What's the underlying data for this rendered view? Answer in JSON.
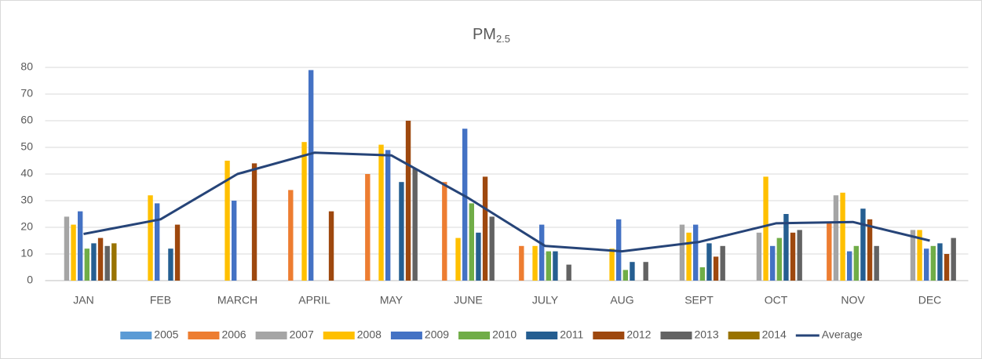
{
  "chart_data": {
    "type": "bar",
    "title": "PM",
    "title_subscript": "2.5",
    "categories": [
      "JAN",
      "FEB",
      "MARCH",
      "APRIL",
      "MAY",
      "JUNE",
      "JULY",
      "AUG",
      "SEPT",
      "OCT",
      "NOV",
      "DEC"
    ],
    "ylim": [
      0,
      80
    ],
    "yticks": [
      0,
      10,
      20,
      30,
      40,
      50,
      60,
      70,
      80
    ],
    "grid": true,
    "legend": "bottom",
    "series": [
      {
        "name": "2005",
        "color": "#5b9bd5",
        "values": [
          null,
          null,
          null,
          null,
          null,
          null,
          null,
          null,
          null,
          null,
          null,
          null
        ]
      },
      {
        "name": "2006",
        "color": "#ed7d31",
        "values": [
          null,
          null,
          null,
          34,
          40,
          37,
          13,
          null,
          null,
          null,
          22,
          null
        ]
      },
      {
        "name": "2007",
        "color": "#a5a5a5",
        "values": [
          24,
          null,
          null,
          null,
          null,
          null,
          null,
          null,
          21,
          18,
          32,
          19
        ]
      },
      {
        "name": "2008",
        "color": "#ffc000",
        "values": [
          21,
          32,
          45,
          52,
          51,
          16,
          13,
          12,
          18,
          39,
          33,
          19
        ]
      },
      {
        "name": "2009",
        "color": "#4472c4",
        "values": [
          26,
          29,
          30,
          79,
          49,
          57,
          21,
          23,
          21,
          13,
          11,
          12
        ]
      },
      {
        "name": "2010",
        "color": "#70ad47",
        "values": [
          12,
          null,
          null,
          null,
          null,
          29,
          11,
          4,
          5,
          16,
          13,
          13
        ]
      },
      {
        "name": "2011",
        "color": "#255e91",
        "values": [
          14,
          12,
          null,
          null,
          37,
          18,
          11,
          7,
          14,
          25,
          27,
          14
        ]
      },
      {
        "name": "2012",
        "color": "#9e480e",
        "values": [
          16,
          21,
          44,
          26,
          60,
          39,
          null,
          null,
          9,
          18,
          23,
          10
        ]
      },
      {
        "name": "2013",
        "color": "#636363",
        "values": [
          13,
          null,
          null,
          null,
          42,
          24,
          6,
          7,
          13,
          19,
          13,
          16
        ]
      },
      {
        "name": "2014",
        "color": "#997300",
        "values": [
          14,
          null,
          null,
          null,
          null,
          null,
          null,
          null,
          null,
          null,
          null,
          null
        ]
      },
      {
        "name": "Average",
        "type": "line",
        "color": "#264478",
        "values": [
          17.5,
          23,
          40,
          48,
          47,
          31,
          13,
          11,
          14.5,
          21.5,
          22,
          15
        ]
      }
    ]
  }
}
